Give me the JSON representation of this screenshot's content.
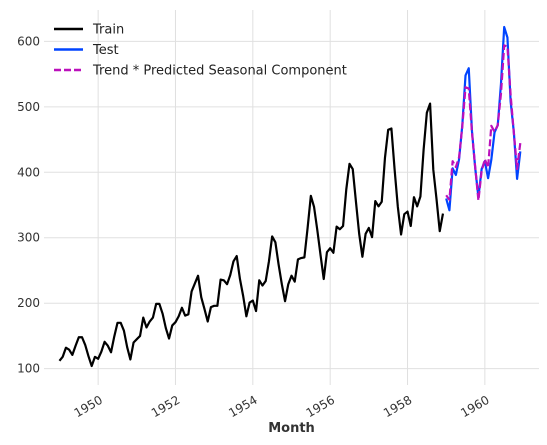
{
  "chart_data": {
    "type": "line",
    "title": "",
    "xlabel": "Month",
    "ylabel": "",
    "x_ticks": [
      1950,
      1952,
      1954,
      1956,
      1958,
      1960
    ],
    "x_tick_labels": [
      "1950",
      "1952",
      "1954",
      "1956",
      "1958",
      "1960"
    ],
    "y_ticks": [
      100,
      200,
      300,
      400,
      500,
      600
    ],
    "y_tick_labels": [
      "100",
      "200",
      "300",
      "400",
      "500",
      "600"
    ],
    "xlim": [
      1948.6,
      1961.4
    ],
    "ylim": [
      75,
      648
    ],
    "grid": true,
    "legend_position": "top-left",
    "x_start": 1949.0,
    "x_step": 0.08333333,
    "series": [
      {
        "name": "Train",
        "color": "#000000",
        "dash": "solid",
        "start_index": 0,
        "values": [
          112,
          118,
          132,
          129,
          121,
          135,
          148,
          148,
          136,
          119,
          104,
          118,
          115,
          126,
          141,
          135,
          125,
          149,
          170,
          170,
          158,
          133,
          114,
          140,
          145,
          150,
          178,
          163,
          172,
          178,
          199,
          199,
          184,
          162,
          146,
          166,
          171,
          180,
          193,
          181,
          183,
          218,
          230,
          242,
          209,
          191,
          172,
          194,
          196,
          196,
          236,
          235,
          229,
          243,
          264,
          272,
          237,
          211,
          180,
          201,
          204,
          188,
          235,
          227,
          234,
          264,
          302,
          293,
          259,
          229,
          203,
          229,
          242,
          233,
          267,
          269,
          270,
          315,
          364,
          347,
          312,
          274,
          237,
          278,
          284,
          277,
          317,
          313,
          318,
          374,
          413,
          405,
          355,
          306,
          271,
          306,
          315,
          301,
          356,
          348,
          355,
          422,
          465,
          467,
          404,
          347,
          305,
          336,
          340,
          318,
          362,
          348,
          363,
          435,
          491,
          505,
          404,
          359,
          310,
          337
        ]
      },
      {
        "name": "Test",
        "color": "#0044ff",
        "dash": "solid",
        "start_index": 120,
        "values": [
          360,
          342,
          406,
          396,
          420,
          472,
          548,
          559,
          463,
          407,
          362,
          405,
          417,
          391,
          419,
          461,
          472,
          535,
          622,
          606,
          508,
          461,
          390,
          432
        ]
      },
      {
        "name": "Trend * Predicted Seasonal Component",
        "color": "#bb10bb",
        "dash": "dashed",
        "start_index": 120,
        "values": [
          365,
          358,
          417,
          408,
          423,
          470,
          530,
          528,
          461,
          408,
          357,
          402,
          420,
          407,
          471,
          462,
          472,
          520,
          594,
          592,
          518,
          460,
          405,
          445
        ]
      }
    ]
  }
}
